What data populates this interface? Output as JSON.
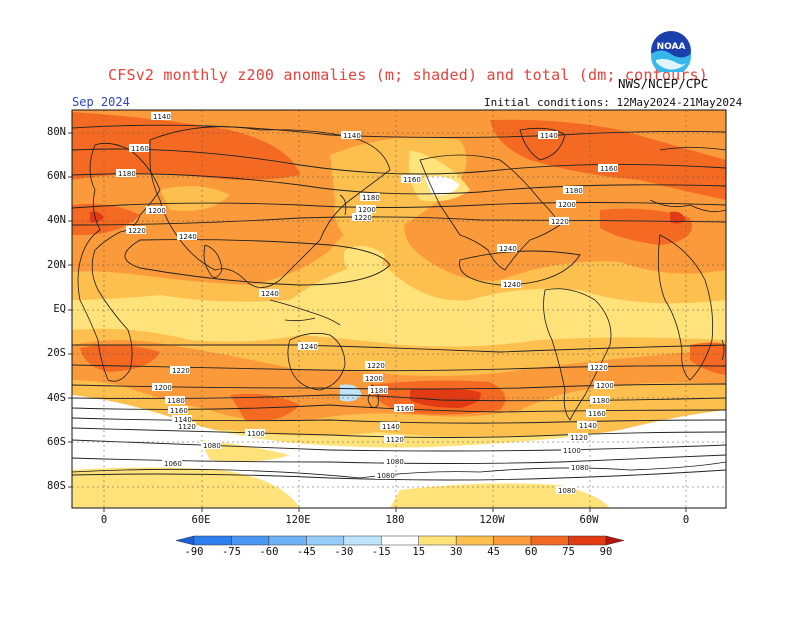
{
  "header": {
    "title": "CFSv2 monthly z200 anomalies (m; shaded) and total (dm; contours)",
    "agency": "NWS/NCEP/CPC",
    "month": "Sep 2024",
    "initial_conditions": "Initial conditions: 12May2024-21May2024",
    "logo_text": "NOAA"
  },
  "axes": {
    "lat_labels": [
      "80N",
      "60N",
      "40N",
      "20N",
      "EQ",
      "20S",
      "40S",
      "60S",
      "80S"
    ],
    "lat_values": [
      80,
      60,
      40,
      20,
      0,
      -20,
      -40,
      -60,
      -80
    ],
    "lon_labels": [
      "0",
      "60E",
      "120E",
      "180",
      "120W",
      "60W",
      "0"
    ],
    "lon_values": [
      0,
      60,
      120,
      180,
      240,
      300,
      360
    ]
  },
  "colorbar": {
    "labels": [
      "-90",
      "-75",
      "-60",
      "-45",
      "-30",
      "-15",
      "15",
      "30",
      "45",
      "60",
      "75",
      "90"
    ],
    "colors": [
      "#1a5fd8",
      "#2d7ff0",
      "#4a98f4",
      "#6fb2f7",
      "#97cdf9",
      "#bde4fb",
      "#ffffff",
      "#ffe27a",
      "#fdbf4d",
      "#fb9a3a",
      "#f46a22",
      "#e23a12",
      "#b8130a"
    ]
  },
  "contours": {
    "labels": [
      "1140",
      "1160",
      "1180",
      "1200",
      "1220",
      "1240",
      "1120",
      "1100",
      "1080",
      "1060"
    ]
  },
  "colors": {
    "title": "#e8413a",
    "month": "#2b44c8",
    "pos_weak": "#ffe27a",
    "pos_mod": "#fdbf4d",
    "pos_strong": "#fb9a3a",
    "pos_vstrong": "#f46a22",
    "pos_max": "#e23a12",
    "neg_weak": "#bde4fb",
    "land": "#1a1a1a"
  }
}
